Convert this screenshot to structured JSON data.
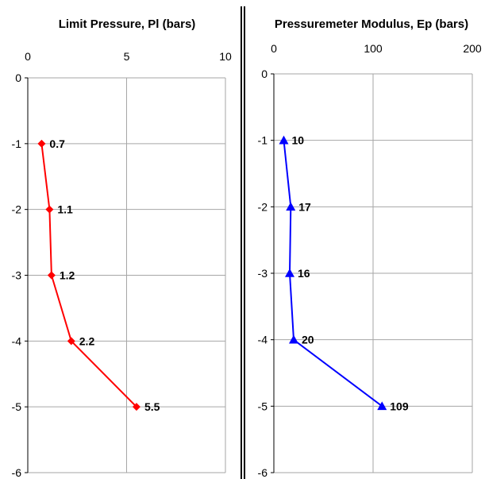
{
  "chart_data": [
    {
      "type": "line",
      "title": "Limit Pressure, Pl (bars)",
      "xlabel": "Limit Pressure, Pl (bars)",
      "ylabel": "",
      "xlim": [
        0,
        10
      ],
      "ylim": [
        -6,
        0
      ],
      "x_ticks": [
        "0",
        "5",
        "10"
      ],
      "y_ticks": [
        "0",
        "-1",
        "-2",
        "-3",
        "-4",
        "-5",
        "-6"
      ],
      "grid": true,
      "marker": "diamond",
      "color": "#ff0000",
      "series": [
        {
          "points": [
            {
              "x": 0.7,
              "y": -1,
              "label": "0.7"
            },
            {
              "x": 1.1,
              "y": -2,
              "label": "1.1"
            },
            {
              "x": 1.2,
              "y": -3,
              "label": "1.2"
            },
            {
              "x": 2.2,
              "y": -4,
              "label": "2.2"
            },
            {
              "x": 5.5,
              "y": -5,
              "label": "5.5"
            }
          ]
        }
      ]
    },
    {
      "type": "line",
      "title": "Pressuremeter Modulus, Ep (bars)",
      "xlabel": "Pressuremeter Modulus, Ep (bars)",
      "ylabel": "",
      "xlim": [
        0,
        200
      ],
      "ylim": [
        -6,
        0
      ],
      "x_ticks": [
        "0",
        "100",
        "200"
      ],
      "y_ticks": [
        "0",
        "-1",
        "-2",
        "-3",
        "-4",
        "-5",
        "-6"
      ],
      "grid": true,
      "marker": "triangle",
      "color": "#0000ff",
      "series": [
        {
          "points": [
            {
              "x": 10,
              "y": -1,
              "label": "10"
            },
            {
              "x": 17,
              "y": -2,
              "label": "17"
            },
            {
              "x": 16,
              "y": -3,
              "label": "16"
            },
            {
              "x": 20,
              "y": -4,
              "label": "20"
            },
            {
              "x": 109,
              "y": -5,
              "label": "109"
            }
          ]
        }
      ]
    }
  ]
}
